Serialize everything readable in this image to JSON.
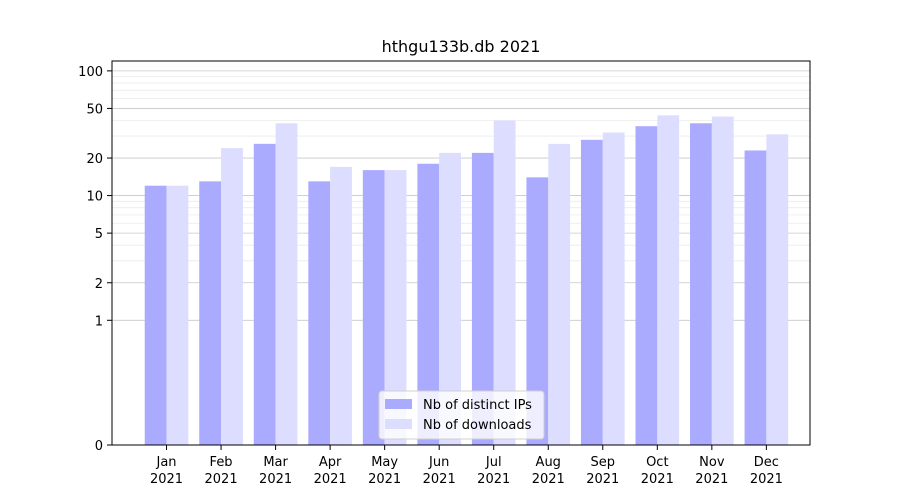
{
  "chart_data": {
    "type": "bar",
    "title": "hthgu133b.db 2021",
    "xlabel": "",
    "ylabel": "",
    "categories": [
      {
        "month": "Jan",
        "year": "2021"
      },
      {
        "month": "Feb",
        "year": "2021"
      },
      {
        "month": "Mar",
        "year": "2021"
      },
      {
        "month": "Apr",
        "year": "2021"
      },
      {
        "month": "May",
        "year": "2021"
      },
      {
        "month": "Jun",
        "year": "2021"
      },
      {
        "month": "Jul",
        "year": "2021"
      },
      {
        "month": "Aug",
        "year": "2021"
      },
      {
        "month": "Sep",
        "year": "2021"
      },
      {
        "month": "Oct",
        "year": "2021"
      },
      {
        "month": "Nov",
        "year": "2021"
      },
      {
        "month": "Dec",
        "year": "2021"
      }
    ],
    "series": [
      {
        "name": "Nb of distinct IPs",
        "color": "#aaaaff",
        "values": [
          12,
          13,
          26,
          13,
          16,
          18,
          22,
          14,
          28,
          36,
          38,
          23
        ]
      },
      {
        "name": "Nb of downloads",
        "color": "#ddddff",
        "values": [
          12,
          24,
          38,
          17,
          16,
          22,
          40,
          26,
          32,
          44,
          43,
          31
        ]
      }
    ],
    "yscale": "symlog",
    "ylim": [
      0,
      120
    ],
    "yticks": [
      0,
      1,
      2,
      5,
      10,
      20,
      50,
      100
    ],
    "grid": true,
    "legend_position": "bottom-center"
  }
}
